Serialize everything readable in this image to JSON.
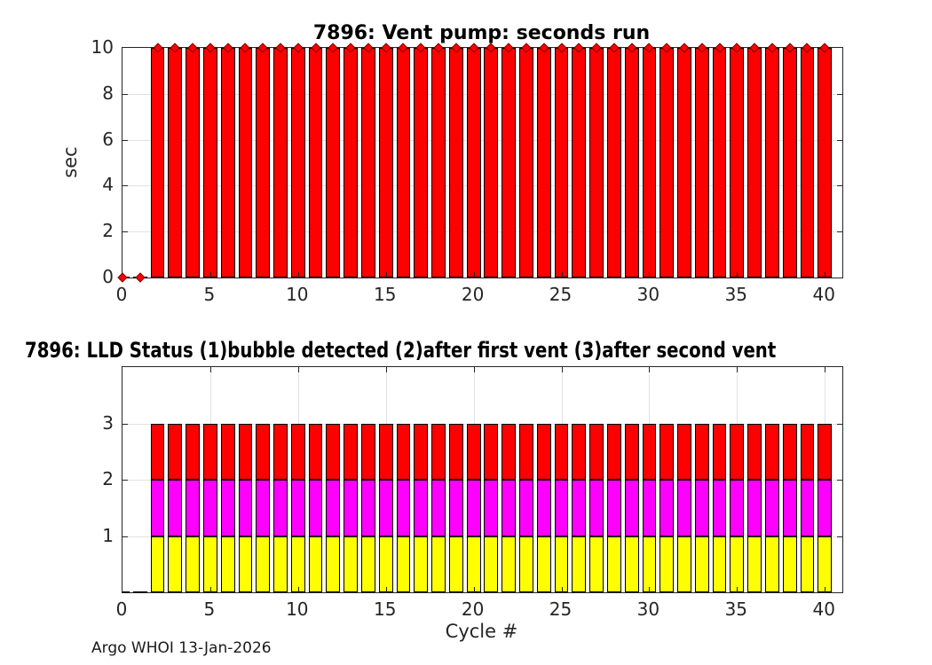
{
  "footer": "Argo WHOI 13-Jan-2026",
  "chart_data": [
    {
      "type": "bar",
      "title": "7896: Vent pump: seconds run",
      "ylabel": "sec",
      "xlabel": "",
      "x": [
        0,
        1,
        2,
        3,
        4,
        5,
        6,
        7,
        8,
        9,
        10,
        11,
        12,
        13,
        14,
        15,
        16,
        17,
        18,
        19,
        20,
        21,
        22,
        23,
        24,
        25,
        26,
        27,
        28,
        29,
        30,
        31,
        32,
        33,
        34,
        35,
        36,
        37,
        38,
        39,
        40
      ],
      "values": [
        0,
        0,
        10,
        10,
        10,
        10,
        10,
        10,
        10,
        10,
        10,
        10,
        10,
        10,
        10,
        10,
        10,
        10,
        10,
        10,
        10,
        10,
        10,
        10,
        10,
        10,
        10,
        10,
        10,
        10,
        10,
        10,
        10,
        10,
        10,
        10,
        10,
        10,
        10,
        10,
        10
      ],
      "bar_color": "#ff0000",
      "marker": "red-diamond",
      "xlim": [
        0,
        41
      ],
      "ylim": [
        0,
        10
      ],
      "xticks": [
        0,
        5,
        10,
        15,
        20,
        25,
        30,
        35,
        40
      ],
      "yticks": [
        0,
        2,
        4,
        6,
        8,
        10
      ],
      "grid": true
    },
    {
      "type": "bar-stacked",
      "title": "7896: LLD Status   (1)bubble detected   (2)after first vent  (3)after second vent",
      "ylabel": "",
      "xlabel": "Cycle #",
      "categories": [
        0,
        1,
        2,
        3,
        4,
        5,
        6,
        7,
        8,
        9,
        10,
        11,
        12,
        13,
        14,
        15,
        16,
        17,
        18,
        19,
        20,
        21,
        22,
        23,
        24,
        25,
        26,
        27,
        28,
        29,
        30,
        31,
        32,
        33,
        34,
        35,
        36,
        37,
        38,
        39,
        40
      ],
      "series": [
        {
          "name": "(1)bubble detected",
          "color": "#ffff00",
          "values": [
            0,
            0,
            1,
            1,
            1,
            1,
            1,
            1,
            1,
            1,
            1,
            1,
            1,
            1,
            1,
            1,
            1,
            1,
            1,
            1,
            1,
            1,
            1,
            1,
            1,
            1,
            1,
            1,
            1,
            1,
            1,
            1,
            1,
            1,
            1,
            1,
            1,
            1,
            1,
            1,
            1
          ]
        },
        {
          "name": "(2)after first vent",
          "color": "#ff00ff",
          "values": [
            0,
            0,
            1,
            1,
            1,
            1,
            1,
            1,
            1,
            1,
            1,
            1,
            1,
            1,
            1,
            1,
            1,
            1,
            1,
            1,
            1,
            1,
            1,
            1,
            1,
            1,
            1,
            1,
            1,
            1,
            1,
            1,
            1,
            1,
            1,
            1,
            1,
            1,
            1,
            1,
            1
          ]
        },
        {
          "name": "(3)after second vent",
          "color": "#ff0000",
          "values": [
            0,
            0,
            1,
            1,
            1,
            1,
            1,
            1,
            1,
            1,
            1,
            1,
            1,
            1,
            1,
            1,
            1,
            1,
            1,
            1,
            1,
            1,
            1,
            1,
            1,
            1,
            1,
            1,
            1,
            1,
            1,
            1,
            1,
            1,
            1,
            1,
            1,
            1,
            1,
            1,
            1
          ]
        }
      ],
      "xlim": [
        0,
        41
      ],
      "ylim": [
        0,
        4
      ],
      "xticks": [
        0,
        5,
        10,
        15,
        20,
        25,
        30,
        35,
        40
      ],
      "yticks": [
        1,
        2,
        3
      ],
      "grid": true
    }
  ]
}
